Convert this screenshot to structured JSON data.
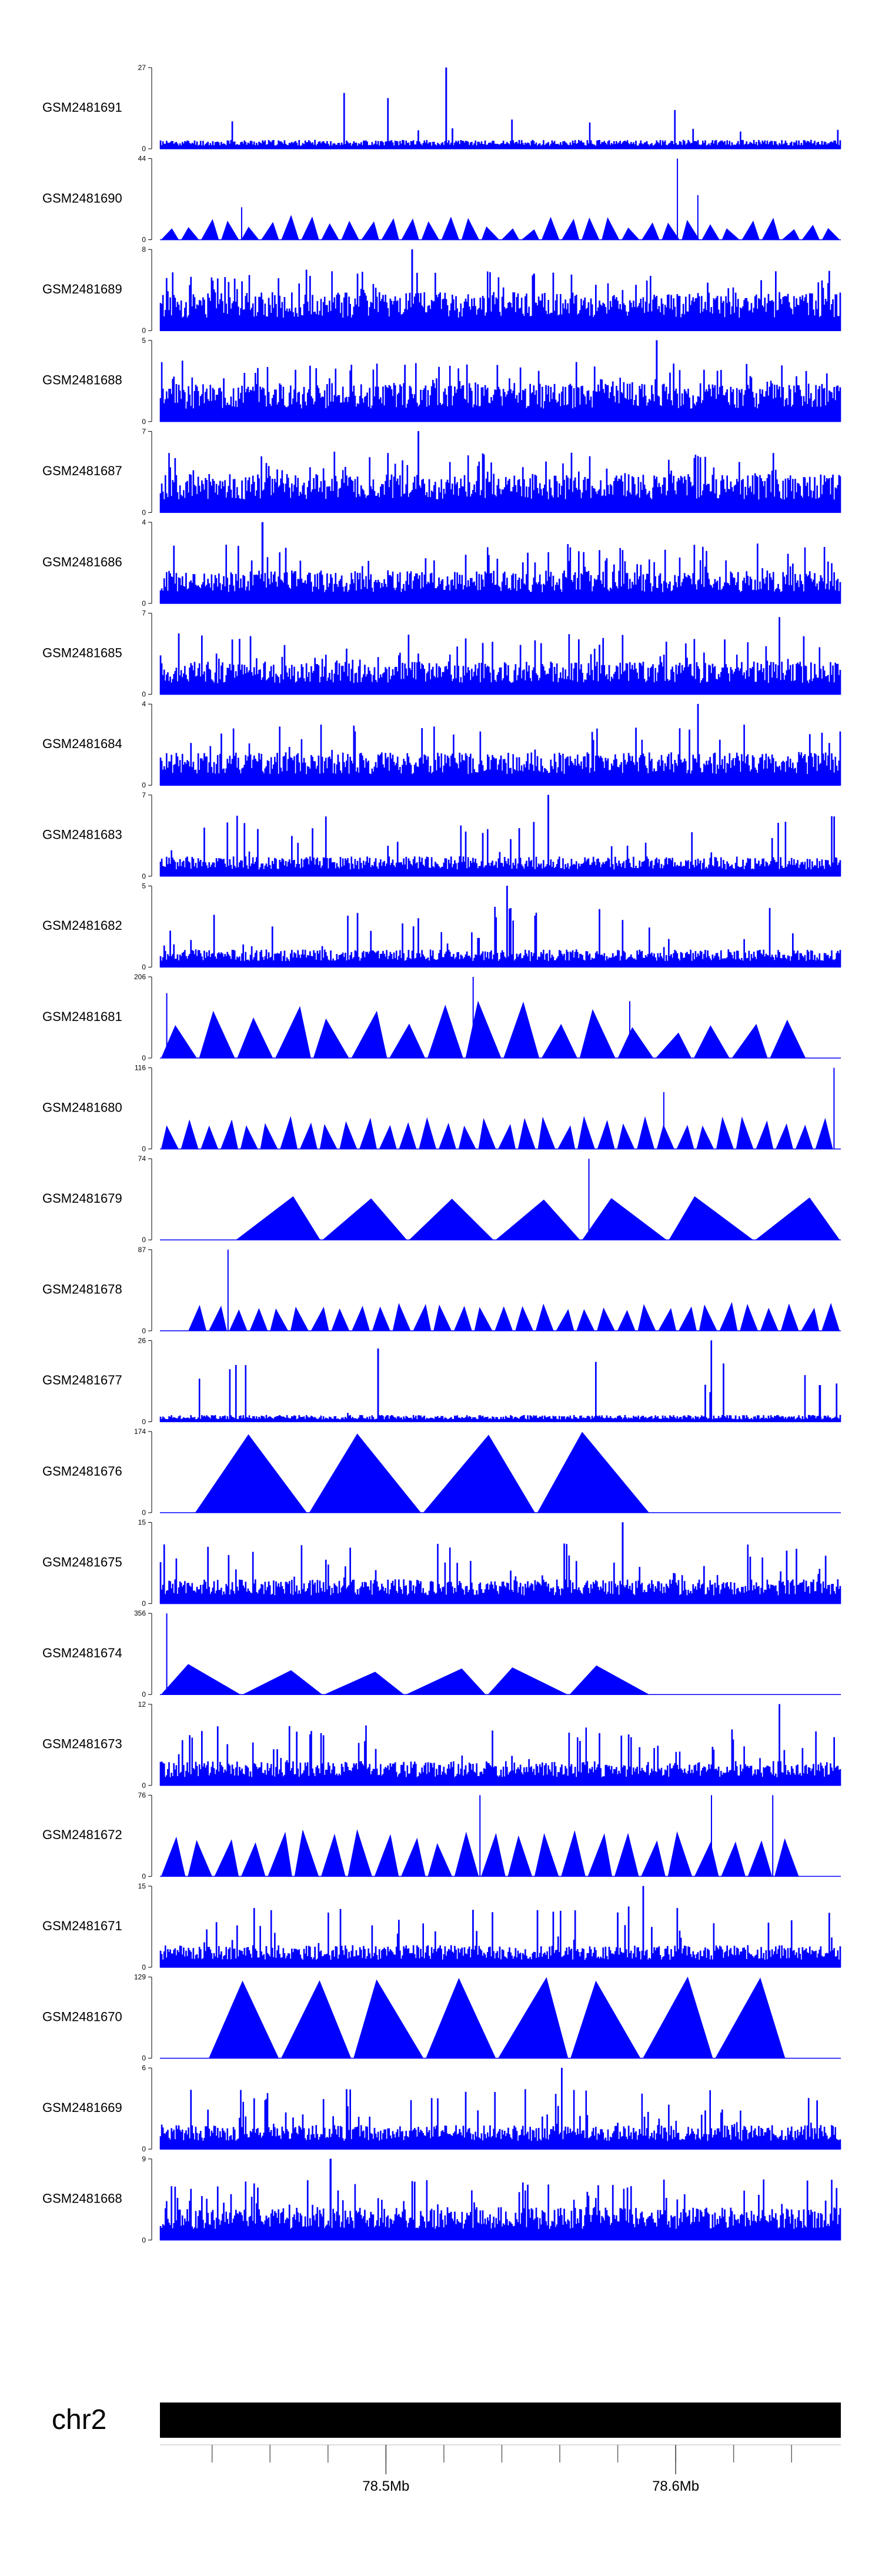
{
  "chart_data": {
    "type": "area",
    "title": "",
    "chromosome": "chr2",
    "color": "#0000ff",
    "axis_color": "#000000",
    "genome_axis": {
      "start_mb": 78.422,
      "end_mb": 78.657,
      "minor_tick_step_mb": 0.02,
      "minor_tick_start_mb": 78.44,
      "major_ticks": [
        78.5,
        78.6
      ],
      "major_tick_labels": [
        "78.5Mb",
        "78.6Mb"
      ]
    },
    "tracks": [
      {
        "name": "GSM2481691",
        "ymin": 0,
        "ymax": 27,
        "ymax_label": "27",
        "ymin_label": "0",
        "style": "spiky",
        "density": 1.0,
        "baseline_fraction": 0.08,
        "spike_rate": 0.02,
        "peaks": [
          [
            0.42,
            1.0
          ],
          [
            0.43,
            0.25
          ]
        ],
        "seed": 11
      },
      {
        "name": "GSM2481690",
        "ymin": 0,
        "ymax": 44,
        "ymax_label": "44",
        "ymin_label": "0",
        "style": "triangles",
        "start": 0.0,
        "end": 1.0,
        "pieces": 34,
        "peak_range": [
          0.12,
          0.3
        ],
        "peaks": [
          [
            0.76,
            1.0
          ],
          [
            0.79,
            0.55
          ],
          [
            0.12,
            0.4
          ]
        ],
        "seed": 12
      },
      {
        "name": "GSM2481689",
        "ymin": 0,
        "ymax": 8,
        "ymax_label": "8",
        "ymin_label": "0",
        "style": "spiky",
        "density": 1.0,
        "baseline_fraction": 0.35,
        "spike_rate": 0.12,
        "peaks": [
          [
            0.37,
            1.0
          ],
          [
            0.55,
            0.7
          ]
        ],
        "seed": 13
      },
      {
        "name": "GSM2481688",
        "ymin": 0,
        "ymax": 5,
        "ymax_label": "5",
        "ymin_label": "0",
        "style": "spiky",
        "density": 1.0,
        "baseline_fraction": 0.35,
        "spike_rate": 0.12,
        "peaks": [
          [
            0.73,
            1.0
          ]
        ],
        "seed": 14
      },
      {
        "name": "GSM2481687",
        "ymin": 0,
        "ymax": 7,
        "ymax_label": "7",
        "ymin_label": "0",
        "style": "spiky",
        "density": 1.0,
        "baseline_fraction": 0.35,
        "spike_rate": 0.12,
        "peaks": [
          [
            0.38,
            1.0
          ]
        ],
        "seed": 15
      },
      {
        "name": "GSM2481686",
        "ymin": 0,
        "ymax": 4,
        "ymax_label": "4",
        "ymin_label": "0",
        "style": "spiky",
        "density": 1.0,
        "baseline_fraction": 0.3,
        "spike_rate": 0.1,
        "peaks": [
          [
            0.15,
            1.0
          ]
        ],
        "seed": 16
      },
      {
        "name": "GSM2481685",
        "ymin": 0,
        "ymax": 7,
        "ymax_label": "7",
        "ymin_label": "0",
        "style": "spiky",
        "density": 1.0,
        "baseline_fraction": 0.3,
        "spike_rate": 0.1,
        "peaks": [
          [
            0.91,
            0.95
          ]
        ],
        "seed": 17
      },
      {
        "name": "GSM2481684",
        "ymin": 0,
        "ymax": 4,
        "ymax_label": "4",
        "ymin_label": "0",
        "style": "spiky",
        "density": 1.0,
        "baseline_fraction": 0.3,
        "spike_rate": 0.08,
        "peaks": [
          [
            0.79,
            1.0
          ]
        ],
        "seed": 18
      },
      {
        "name": "GSM2481683",
        "ymin": 0,
        "ymax": 7,
        "ymax_label": "7",
        "ymin_label": "0",
        "style": "spiky",
        "density": 1.0,
        "baseline_fraction": 0.18,
        "spike_rate": 0.06,
        "peaks": [
          [
            0.57,
            1.0
          ]
        ],
        "seed": 19
      },
      {
        "name": "GSM2481682",
        "ymin": 0,
        "ymax": 5,
        "ymax_label": "5",
        "ymin_label": "0",
        "style": "spiky",
        "density": 1.0,
        "baseline_fraction": 0.16,
        "spike_rate": 0.06,
        "peaks": [
          [
            0.51,
            1.0
          ]
        ],
        "seed": 20
      },
      {
        "name": "GSM2481681",
        "ymin": 0,
        "ymax": 206,
        "ymax_label": "206",
        "ymin_label": "0",
        "style": "triangles",
        "start": 0.0,
        "end": 0.95,
        "pieces": 17,
        "peak_range": [
          0.3,
          0.7
        ],
        "peaks": [
          [
            0.01,
            0.8
          ],
          [
            0.46,
            1.0
          ],
          [
            0.69,
            0.7
          ]
        ],
        "seed": 21
      },
      {
        "name": "GSM2481680",
        "ymin": 0,
        "ymax": 116,
        "ymax_label": "116",
        "ymin_label": "0",
        "style": "triangles",
        "start": 0.0,
        "end": 0.99,
        "pieces": 34,
        "peak_range": [
          0.28,
          0.4
        ],
        "peaks": [
          [
            0.99,
            1.0
          ],
          [
            0.74,
            0.7
          ]
        ],
        "seed": 22
      },
      {
        "name": "GSM2481679",
        "ymin": 0,
        "ymax": 74,
        "ymax_label": "74",
        "ymin_label": "0",
        "style": "triangles",
        "start": 0.11,
        "end": 1.0,
        "pieces": 7,
        "peak_range": [
          0.45,
          0.55
        ],
        "peaks": [
          [
            0.63,
            1.0
          ]
        ],
        "seed": 23
      },
      {
        "name": "GSM2481678",
        "ymin": 0,
        "ymax": 87,
        "ymax_label": "87",
        "ymin_label": "0",
        "style": "triangles",
        "start": 0.04,
        "end": 1.0,
        "pieces": 32,
        "peak_range": [
          0.25,
          0.35
        ],
        "peaks": [
          [
            0.1,
            1.0
          ]
        ],
        "seed": 24
      },
      {
        "name": "GSM2481677",
        "ymin": 0,
        "ymax": 26,
        "ymax_label": "26",
        "ymin_label": "0",
        "style": "spiky",
        "density": 1.0,
        "baseline_fraction": 0.06,
        "spike_rate": 0.03,
        "peaks": [
          [
            0.32,
            0.9
          ],
          [
            0.81,
            1.0
          ],
          [
            0.97,
            0.45
          ]
        ],
        "seed": 25
      },
      {
        "name": "GSM2481676",
        "ymin": 0,
        "ymax": 174,
        "ymax_label": "174",
        "ymin_label": "0",
        "style": "triangles",
        "start": 0.05,
        "end": 0.72,
        "pieces": 4,
        "peak_range": [
          0.95,
          1.0
        ],
        "peaks": [],
        "seed": 26
      },
      {
        "name": "GSM2481675",
        "ymin": 0,
        "ymax": 15,
        "ymax_label": "15",
        "ymin_label": "0",
        "style": "spiky",
        "density": 1.0,
        "baseline_fraction": 0.22,
        "spike_rate": 0.1,
        "peaks": [
          [
            0.68,
            1.0
          ]
        ],
        "seed": 27
      },
      {
        "name": "GSM2481674",
        "ymin": 0,
        "ymax": 356,
        "ymax_label": "356",
        "ymin_label": "0",
        "style": "triangles",
        "start": 0.0,
        "end": 0.72,
        "pieces": 6,
        "peak_range": [
          0.25,
          0.4
        ],
        "peaks": [
          [
            0.01,
            1.0
          ]
        ],
        "seed": 28
      },
      {
        "name": "GSM2481673",
        "ymin": 0,
        "ymax": 12,
        "ymax_label": "12",
        "ymin_label": "0",
        "style": "spiky",
        "density": 1.0,
        "baseline_fraction": 0.22,
        "spike_rate": 0.1,
        "peaks": [
          [
            0.91,
            1.0
          ]
        ],
        "seed": 29
      },
      {
        "name": "GSM2481672",
        "ymin": 0,
        "ymax": 76,
        "ymax_label": "76",
        "ymin_label": "0",
        "style": "triangles",
        "start": 0.0,
        "end": 0.94,
        "pieces": 24,
        "peak_range": [
          0.4,
          0.6
        ],
        "peaks": [
          [
            0.47,
            1.0
          ],
          [
            0.81,
            1.0
          ],
          [
            0.9,
            1.0
          ]
        ],
        "seed": 30
      },
      {
        "name": "GSM2481671",
        "ymin": 0,
        "ymax": 15,
        "ymax_label": "15",
        "ymin_label": "0",
        "style": "spiky",
        "density": 1.0,
        "baseline_fraction": 0.2,
        "spike_rate": 0.08,
        "peaks": [
          [
            0.71,
            1.0
          ]
        ],
        "seed": 31
      },
      {
        "name": "GSM2481670",
        "ymin": 0,
        "ymax": 129,
        "ymax_label": "129",
        "ymin_label": "0",
        "style": "triangles",
        "start": 0.07,
        "end": 0.92,
        "pieces": 8,
        "peak_range": [
          0.95,
          1.0
        ],
        "peaks": [],
        "seed": 32
      },
      {
        "name": "GSM2481669",
        "ymin": 0,
        "ymax": 6,
        "ymax_label": "6",
        "ymin_label": "0",
        "style": "spiky",
        "density": 1.0,
        "baseline_fraction": 0.22,
        "spike_rate": 0.08,
        "peaks": [
          [
            0.59,
            1.0
          ]
        ],
        "seed": 33
      },
      {
        "name": "GSM2481668",
        "ymin": 0,
        "ymax": 9,
        "ymax_label": "9",
        "ymin_label": "0",
        "style": "spiky",
        "density": 1.0,
        "baseline_fraction": 0.3,
        "spike_rate": 0.12,
        "peaks": [
          [
            0.25,
            1.0
          ]
        ],
        "seed": 34
      }
    ]
  }
}
